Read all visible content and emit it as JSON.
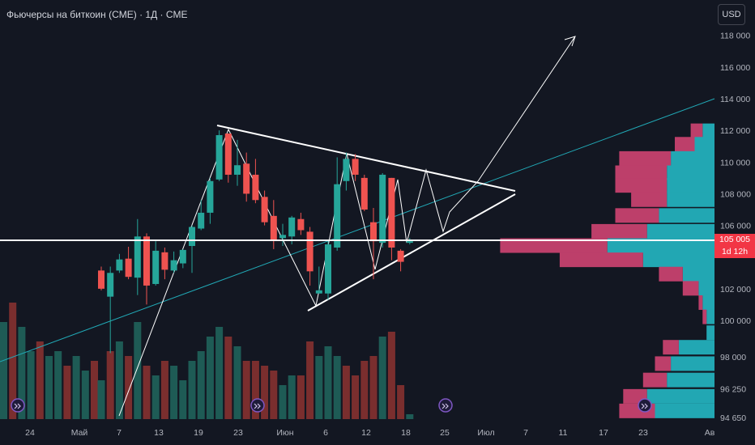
{
  "header": {
    "title": "Фьючерсы на биткоин (CME) · 1Д · CME",
    "currency_label": "USD"
  },
  "price_label": {
    "value": "105 005",
    "countdown": "1d 12h",
    "value_numeric": 105005
  },
  "colors": {
    "background": "#131722",
    "up": "#26a69a",
    "down": "#ef5350",
    "volume_up": "#1e5b55",
    "volume_down": "#7a2e2e",
    "profile_up": "#22a7b3",
    "profile_down": "#bd3f6a",
    "trendline": "#21a9b6",
    "drawing": "#ffffff",
    "price_tag": "#f23645",
    "event_icon": "#7e57c2"
  },
  "chart_data": {
    "type": "candlestick",
    "title": "Фьючерсы на биткоин (CME) · 1Д · CME",
    "y_axis": {
      "tick_labels": [
        "118 000",
        "116 000",
        "114 000",
        "112 000",
        "110 000",
        "108 000",
        "106 000",
        "102 000",
        "100 000",
        "98 000",
        "96 250",
        "94 650"
      ],
      "tick_values": [
        118000,
        116000,
        114000,
        112000,
        110000,
        108000,
        106000,
        102000,
        100000,
        98000,
        96250,
        94650
      ],
      "range": [
        94650,
        120000
      ]
    },
    "x_axis": {
      "tick_labels": [
        "24",
        "Май",
        "7",
        "13",
        "19",
        "23",
        "Июн",
        "6",
        "12",
        "18",
        "25",
        "Июл",
        "7",
        "11",
        "17",
        "23",
        "Ав"
      ]
    },
    "candles": [
      {
        "open": 103150,
        "close": 102000,
        "high": 103400,
        "low": 101900
      },
      {
        "open": 101500,
        "close": 103000,
        "high": 103400,
        "low": 98200
      },
      {
        "open": 103150,
        "close": 103850,
        "high": 104200,
        "low": 103000
      },
      {
        "open": 103900,
        "close": 102750,
        "high": 104650,
        "low": 102600
      },
      {
        "open": 102700,
        "close": 105300,
        "high": 106400,
        "low": 101600
      },
      {
        "open": 105300,
        "close": 102200,
        "high": 105500,
        "low": 101000
      },
      {
        "open": 102300,
        "close": 104400,
        "high": 105000,
        "low": 102200
      },
      {
        "open": 104300,
        "close": 103200,
        "high": 104600,
        "low": 102600
      },
      {
        "open": 103150,
        "close": 103800,
        "high": 104350,
        "low": 103000
      },
      {
        "open": 103600,
        "close": 104450,
        "high": 104500,
        "low": 103300
      },
      {
        "open": 104700,
        "close": 105900,
        "high": 106000,
        "low": 103000
      },
      {
        "open": 105800,
        "close": 106800,
        "high": 107600,
        "low": 105700
      },
      {
        "open": 106800,
        "close": 108800,
        "high": 109000,
        "low": 106100
      },
      {
        "open": 108900,
        "close": 111700,
        "high": 112000,
        "low": 108800
      },
      {
        "open": 111800,
        "close": 109200,
        "high": 111800,
        "low": 108700
      },
      {
        "open": 109200,
        "close": 109800,
        "high": 111400,
        "low": 108500
      },
      {
        "open": 109900,
        "close": 108000,
        "high": 110600,
        "low": 107500
      },
      {
        "open": 109200,
        "close": 107600,
        "high": 110200,
        "low": 107400
      },
      {
        "open": 107800,
        "close": 106200,
        "high": 108200,
        "low": 106000
      },
      {
        "open": 106600,
        "close": 105100,
        "high": 107600,
        "low": 104500
      },
      {
        "open": 105200,
        "close": 105400,
        "high": 106100,
        "low": 104700
      },
      {
        "open": 105300,
        "close": 106500,
        "high": 106600,
        "low": 104800
      },
      {
        "open": 106400,
        "close": 105700,
        "high": 106800,
        "low": 105400
      },
      {
        "open": 105600,
        "close": 103100,
        "high": 105900,
        "low": 102200
      },
      {
        "open": 101700,
        "close": 101900,
        "high": 103400,
        "low": 101700
      },
      {
        "open": 101700,
        "close": 104800,
        "high": 105100,
        "low": 101300
      },
      {
        "open": 104600,
        "close": 108600,
        "high": 110300,
        "low": 104400
      },
      {
        "open": 108800,
        "close": 110200,
        "high": 110600,
        "low": 108200
      },
      {
        "open": 110200,
        "close": 109200,
        "high": 110500,
        "low": 108800
      },
      {
        "open": 109000,
        "close": 107000,
        "high": 109200,
        "low": 106900
      },
      {
        "open": 106200,
        "close": 105000,
        "high": 107100,
        "low": 102600
      },
      {
        "open": 104900,
        "close": 109200,
        "high": 109300,
        "low": 104600
      },
      {
        "open": 109000,
        "close": 104600,
        "high": 109000,
        "low": 103800
      },
      {
        "open": 104400,
        "close": 103700,
        "high": 104500,
        "low": 103100
      },
      {
        "open": 104900,
        "close": 105000,
        "high": 105200,
        "low": 104800
      }
    ],
    "volume": [
      {
        "value": 8,
        "up": true
      },
      {
        "value": 14,
        "up": false
      },
      {
        "value": 16,
        "up": true
      },
      {
        "value": 13,
        "up": false
      },
      {
        "value": 20,
        "up": true
      },
      {
        "value": 11,
        "up": false
      },
      {
        "value": 9,
        "up": true
      },
      {
        "value": 12,
        "up": false
      },
      {
        "value": 11,
        "up": true
      },
      {
        "value": 8,
        "up": true
      },
      {
        "value": 12,
        "up": true
      },
      {
        "value": 14,
        "up": true
      },
      {
        "value": 17,
        "up": true
      },
      {
        "value": 19,
        "up": true
      },
      {
        "value": 17,
        "up": false
      },
      {
        "value": 15,
        "up": true
      },
      {
        "value": 12,
        "up": false
      },
      {
        "value": 12,
        "up": false
      },
      {
        "value": 11,
        "up": false
      },
      {
        "value": 10,
        "up": false
      },
      {
        "value": 7,
        "up": true
      },
      {
        "value": 9,
        "up": true
      },
      {
        "value": 9,
        "up": false
      },
      {
        "value": 16,
        "up": false
      },
      {
        "value": 13,
        "up": true
      },
      {
        "value": 15,
        "up": true
      },
      {
        "value": 13,
        "up": true
      },
      {
        "value": 11,
        "up": false
      },
      {
        "value": 9,
        "up": false
      },
      {
        "value": 12,
        "up": false
      },
      {
        "value": 13,
        "up": false
      },
      {
        "value": 17,
        "up": true
      },
      {
        "value": 18,
        "up": false
      },
      {
        "value": 7,
        "up": false
      },
      {
        "value": 1,
        "up": true
      }
    ],
    "volume_profile": [
      {
        "price": 111950,
        "up": 3,
        "down": 3
      },
      {
        "price": 111100,
        "up": 5,
        "down": 5
      },
      {
        "price": 110200,
        "up": 11,
        "down": 13
      },
      {
        "price": 109300,
        "up": 12,
        "down": 13
      },
      {
        "price": 108500,
        "up": 12,
        "down": 13
      },
      {
        "price": 107600,
        "up": 12,
        "down": 9
      },
      {
        "price": 106600,
        "up": 14,
        "down": 11
      },
      {
        "price": 105600,
        "up": 17,
        "down": 14
      },
      {
        "price": 104700,
        "up": 27,
        "down": 27
      },
      {
        "price": 103800,
        "up": 18,
        "down": 21
      },
      {
        "price": 102900,
        "up": 8,
        "down": 6
      },
      {
        "price": 102000,
        "up": 4,
        "down": 4
      },
      {
        "price": 101100,
        "up": 3,
        "down": 1
      },
      {
        "price": 100200,
        "up": 2,
        "down": 1
      },
      {
        "price": 99300,
        "up": 2,
        "down": 0
      },
      {
        "price": 98500,
        "up": 9,
        "down": 4
      },
      {
        "price": 97600,
        "up": 11,
        "down": 4
      },
      {
        "price": 96700,
        "up": 12,
        "down": 6
      },
      {
        "price": 95800,
        "up": 17,
        "down": 6
      },
      {
        "price": 95000,
        "up": 15,
        "down": 9
      }
    ],
    "horizontal_line": {
      "price": 105005
    },
    "grid": false,
    "legend": "none"
  }
}
